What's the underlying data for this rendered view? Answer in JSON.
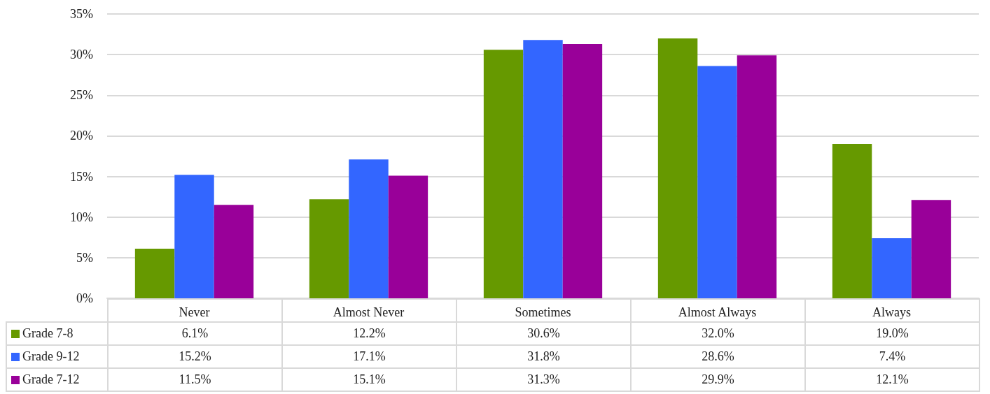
{
  "chart_data": {
    "type": "bar",
    "categories": [
      "Never",
      "Almost Never",
      "Sometimes",
      "Almost Always",
      "Always"
    ],
    "series": [
      {
        "name": "Grade  7-8",
        "color": "#669900",
        "values": [
          6.1,
          12.2,
          30.6,
          32.0,
          19.0
        ],
        "value_labels": [
          "6.1%",
          "12.2%",
          "30.6%",
          "32.0%",
          "19.0%"
        ]
      },
      {
        "name": "Grade  9-12",
        "color": "#3366ff",
        "values": [
          15.2,
          17.1,
          31.8,
          28.6,
          7.4
        ],
        "value_labels": [
          "15.2%",
          "17.1%",
          "31.8%",
          "28.6%",
          "7.4%"
        ]
      },
      {
        "name": "Grade  7-12",
        "color": "#990099",
        "values": [
          11.5,
          15.1,
          31.3,
          29.9,
          12.1
        ],
        "value_labels": [
          "11.5%",
          "15.1%",
          "31.3%",
          "29.9%",
          "12.1%"
        ]
      }
    ],
    "ylim": [
      0,
      35
    ],
    "yticks": [
      {
        "value": 0,
        "label": "0%"
      },
      {
        "value": 5,
        "label": "5%"
      },
      {
        "value": 10,
        "label": "10%"
      },
      {
        "value": 15,
        "label": "15%"
      },
      {
        "value": 20,
        "label": "20%"
      },
      {
        "value": 25,
        "label": "25%"
      },
      {
        "value": 30,
        "label": "30%"
      },
      {
        "value": 35,
        "label": "35%"
      }
    ],
    "grid": "y",
    "legend": "bottom"
  }
}
